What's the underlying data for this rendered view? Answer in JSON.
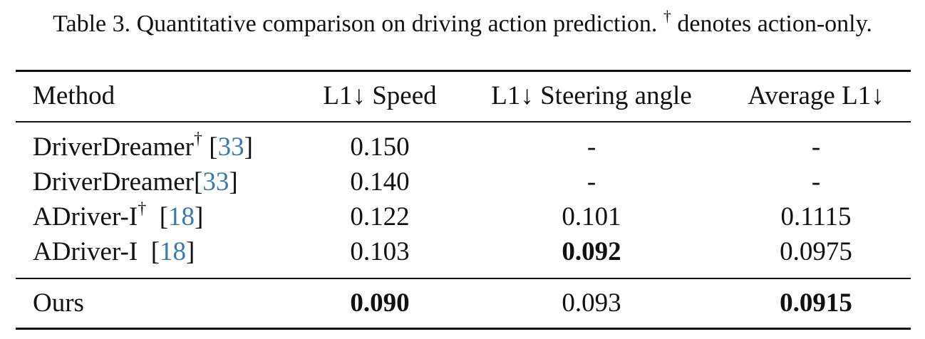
{
  "caption": {
    "text": "Table 3. Quantitative comparison on driving action prediction.",
    "dagger": "†",
    "suffix": "denotes action-only."
  },
  "table": {
    "headers": [
      "Method",
      "L1↓ Speed",
      "L1↓ Steering angle",
      "Average L1↓"
    ],
    "rows": [
      {
        "method": "DriverDreamer",
        "dagger": "†",
        "gap": " ",
        "cite_open": "[",
        "cite": "33",
        "cite_close": "]",
        "speed": "0.150",
        "steering": "-",
        "average": "-"
      },
      {
        "method": "DriverDreamer",
        "dagger": "",
        "gap": "",
        "cite_open": "[",
        "cite": "33",
        "cite_close": "]",
        "speed": "0.140",
        "steering": "-",
        "average": "-"
      },
      {
        "method": "ADriver-I",
        "dagger": "†",
        "gap": "  ",
        "cite_open": "[",
        "cite": "18",
        "cite_close": "]",
        "speed": "0.122",
        "steering": "0.101",
        "average": "0.1115"
      },
      {
        "method": "ADriver-I",
        "dagger": "",
        "gap": "  ",
        "cite_open": "[",
        "cite": "18",
        "cite_close": "]",
        "speed": "0.103",
        "steering": "0.092",
        "average": "0.0975"
      }
    ],
    "ours": {
      "method": "Ours",
      "speed": "0.090",
      "steering": "0.093",
      "average": "0.0915"
    }
  },
  "colors": {
    "text": "#111111",
    "citation": "#3a78b0"
  }
}
